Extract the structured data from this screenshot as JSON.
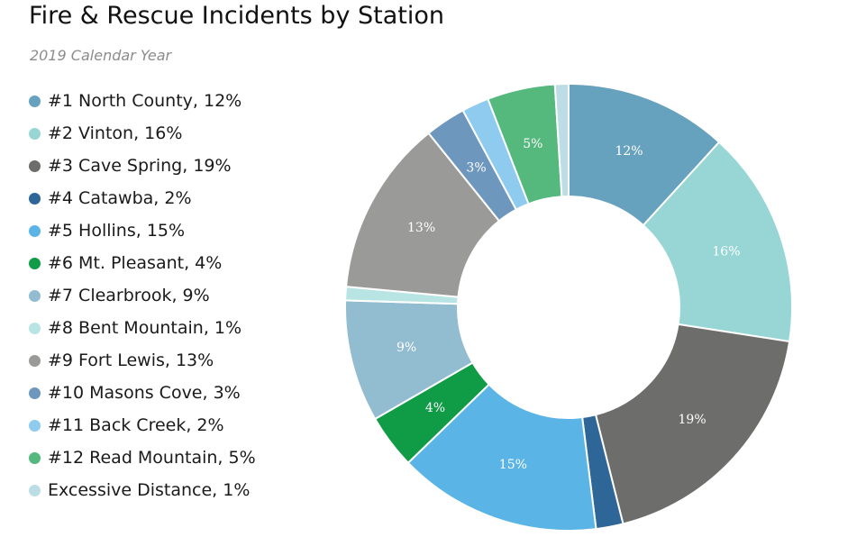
{
  "chart_data": {
    "type": "pie",
    "title": "Fire & Rescue Incidents by Station",
    "subtitle": "2019 Calendar Year",
    "legend_position": "left",
    "donut": true,
    "categories": [
      "#1 North County",
      "#2 Vinton",
      "#3 Cave Spring",
      "#4 Catawba",
      "#5 Hollins",
      "#6 Mt. Pleasant",
      "#7 Clearbrook",
      "#8 Bent Mountain",
      "#9 Fort Lewis",
      "#10 Masons Cove",
      "#11 Back Creek",
      "#12 Read Mountain",
      "Excessive Distance"
    ],
    "values": [
      12,
      16,
      19,
      2,
      15,
      4,
      9,
      1,
      13,
      3,
      2,
      5,
      1
    ],
    "legend_labels": [
      "#1 North County, 12%",
      "#2 Vinton, 16%",
      "#3 Cave Spring, 19%",
      "#4 Catawba, 2%",
      "#5 Hollins, 15%",
      "#6 Mt. Pleasant, 4%",
      "#7 Clearbrook, 9%",
      "#8 Bent Mountain, 1%",
      "#9 Fort Lewis, 13%",
      "#10 Masons Cove, 3%",
      "#11 Back Creek, 2%",
      "#12 Read Mountain, 5%",
      "Excessive Distance, 1%"
    ],
    "slice_labels": [
      "12%",
      "16%",
      "19%",
      "",
      "15%",
      "4%",
      "9%",
      "",
      "13%",
      "3%",
      "",
      "5%",
      ""
    ],
    "colors": [
      "#66a1bd",
      "#98d6d6",
      "#6d6d6b",
      "#2f6698",
      "#5bb4e6",
      "#109b47",
      "#92bccf",
      "#b8e5e3",
      "#9a9a98",
      "#6e97bd",
      "#8ecbef",
      "#55b87d",
      "#bcdde4"
    ]
  }
}
